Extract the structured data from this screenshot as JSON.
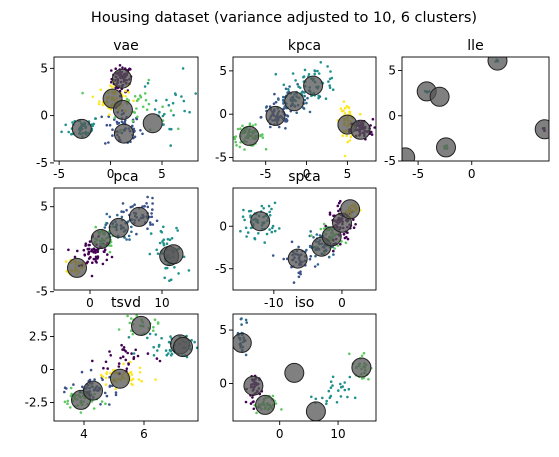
{
  "figure_title": "Housing dataset (variance adjusted to 10, 6 clusters)",
  "colors": {
    "cluster_palette": [
      "#440154",
      "#3b528b",
      "#21918c",
      "#5ec962",
      "#fde725",
      "#31688e"
    ],
    "centroid_fill": "#555555",
    "centroid_edge": "#222222",
    "axes": "#000000",
    "background": "#ffffff"
  },
  "chart_data": [
    {
      "type": "scatter",
      "title": "vae",
      "xlim": [
        -5.5,
        8.5
      ],
      "ylim": [
        -4.8,
        6.2
      ],
      "xticks": [
        -5,
        0,
        5
      ],
      "yticks": [
        -5,
        0,
        5
      ],
      "grid": false,
      "legend": "none",
      "centroids": [
        [
          -2.8,
          -1.4
        ],
        [
          0.2,
          1.8
        ],
        [
          1.1,
          3.9
        ],
        [
          1.2,
          0.6
        ],
        [
          1.3,
          -1.9
        ],
        [
          4.1,
          -0.8
        ]
      ],
      "clusters": [
        {
          "cluster": 0,
          "center": [
            1.1,
            3.9
          ],
          "spread": [
            0.5,
            0.7
          ],
          "n": 70
        },
        {
          "cluster": 1,
          "center": [
            1.2,
            -1.3
          ],
          "spread": [
            0.9,
            1.1
          ],
          "n": 55
        },
        {
          "cluster": 2,
          "center": [
            -2.8,
            -1.2
          ],
          "spread": [
            0.9,
            0.6
          ],
          "n": 45
        },
        {
          "cluster": 3,
          "center": [
            2.5,
            1.0
          ],
          "spread": [
            1.5,
            1.2
          ],
          "n": 30
        },
        {
          "cluster": 4,
          "center": [
            0.3,
            1.8
          ],
          "spread": [
            0.7,
            0.8
          ],
          "n": 60
        },
        {
          "cluster": 2,
          "center": [
            5.8,
            0.8
          ],
          "spread": [
            1.4,
            1.8
          ],
          "n": 25
        }
      ]
    },
    {
      "type": "scatter",
      "title": "kpca",
      "xlim": [
        -9.0,
        8.5
      ],
      "ylim": [
        -5.4,
        6.6
      ],
      "xticks": [
        -5,
        0,
        5
      ],
      "yticks": [
        -5,
        0,
        5
      ],
      "grid": false,
      "legend": "none",
      "centroids": [
        [
          -7.0,
          -2.5
        ],
        [
          -3.8,
          -0.2
        ],
        [
          -1.5,
          1.5
        ],
        [
          0.8,
          3.3
        ],
        [
          5.0,
          -1.2
        ],
        [
          6.6,
          -1.8
        ]
      ],
      "clusters": [
        {
          "cluster": 3,
          "center": [
            -7.2,
            -2.5
          ],
          "spread": [
            1.0,
            0.6
          ],
          "n": 60
        },
        {
          "cluster": 1,
          "center": [
            -3.5,
            -0.3
          ],
          "spread": [
            1.0,
            0.8
          ],
          "n": 60
        },
        {
          "cluster": 5,
          "center": [
            -1.5,
            1.5
          ],
          "spread": [
            1.3,
            0.8
          ],
          "n": 55
        },
        {
          "cluster": 2,
          "center": [
            0.8,
            3.6
          ],
          "spread": [
            1.6,
            1.0
          ],
          "n": 55
        },
        {
          "cluster": 4,
          "center": [
            5.0,
            -0.8
          ],
          "spread": [
            0.5,
            1.0
          ],
          "n": 50
        },
        {
          "cluster": 0,
          "center": [
            6.7,
            -1.8
          ],
          "spread": [
            0.7,
            0.6
          ],
          "n": 55
        }
      ]
    },
    {
      "type": "scatter",
      "title": "lle",
      "xlim": [
        -6.5,
        7.2
      ],
      "ylim": [
        -5.0,
        6.5
      ],
      "xticks": [
        -5,
        0
      ],
      "yticks": [
        -5,
        0,
        5
      ],
      "grid": false,
      "legend": "none",
      "centroids": [
        [
          -6.2,
          -4.6
        ],
        [
          -4.2,
          2.7
        ],
        [
          -3.0,
          2.1
        ],
        [
          -2.4,
          -3.5
        ],
        [
          2.4,
          6.1
        ],
        [
          6.8,
          -1.5
        ]
      ],
      "clusters": [
        {
          "cluster": 2,
          "center": [
            -4.2,
            2.7
          ],
          "spread": [
            0.15,
            0.15
          ],
          "n": 6
        },
        {
          "cluster": 3,
          "center": [
            -2.4,
            -3.5
          ],
          "spread": [
            0.15,
            0.15
          ],
          "n": 6
        },
        {
          "cluster": 2,
          "center": [
            2.4,
            6.1
          ],
          "spread": [
            0.1,
            0.1
          ],
          "n": 4
        },
        {
          "cluster": 0,
          "center": [
            6.8,
            -1.5
          ],
          "spread": [
            0.1,
            0.1
          ],
          "n": 4
        }
      ]
    },
    {
      "type": "scatter",
      "title": "pca",
      "xlim": [
        -5.0,
        15.0
      ],
      "ylim": [
        -4.8,
        7.2
      ],
      "xticks": [
        0,
        10
      ],
      "yticks": [
        -5,
        0,
        5
      ],
      "grid": false,
      "legend": "none",
      "centroids": [
        [
          -1.8,
          -2.2
        ],
        [
          1.5,
          1.2
        ],
        [
          4.0,
          2.5
        ],
        [
          6.8,
          3.8
        ],
        [
          11.0,
          -0.8
        ],
        [
          11.6,
          -0.6
        ]
      ],
      "clusters": [
        {
          "cluster": 0,
          "center": [
            0.5,
            -0.3
          ],
          "spread": [
            1.2,
            1.0
          ],
          "n": 65
        },
        {
          "cluster": 4,
          "center": [
            -2.0,
            -2.0
          ],
          "spread": [
            0.5,
            0.5
          ],
          "n": 30
        },
        {
          "cluster": 3,
          "center": [
            1.6,
            1.2
          ],
          "spread": [
            1.0,
            0.8
          ],
          "n": 40
        },
        {
          "cluster": 5,
          "center": [
            4.0,
            2.6
          ],
          "spread": [
            1.0,
            0.8
          ],
          "n": 40
        },
        {
          "cluster": 1,
          "center": [
            7.0,
            4.0
          ],
          "spread": [
            1.2,
            1.0
          ],
          "n": 45
        },
        {
          "cluster": 2,
          "center": [
            11.0,
            -0.8
          ],
          "spread": [
            1.2,
            1.8
          ],
          "n": 45
        }
      ]
    },
    {
      "type": "scatter",
      "title": "spca",
      "xlim": [
        -16.0,
        5.0
      ],
      "ylim": [
        -7.5,
        4.5
      ],
      "xticks": [
        -10,
        0
      ],
      "yticks": [
        -5,
        0
      ],
      "grid": false,
      "legend": "none",
      "centroids": [
        [
          -12.0,
          0.6
        ],
        [
          -6.5,
          -3.8
        ],
        [
          -3.0,
          -2.4
        ],
        [
          -1.5,
          -1.2
        ],
        [
          0.0,
          0.4
        ],
        [
          1.2,
          2.0
        ]
      ],
      "clusters": [
        {
          "cluster": 2,
          "center": [
            -12.0,
            0.7
          ],
          "spread": [
            1.3,
            1.0
          ],
          "n": 55
        },
        {
          "cluster": 1,
          "center": [
            -6.5,
            -3.8
          ],
          "spread": [
            1.2,
            0.9
          ],
          "n": 45
        },
        {
          "cluster": 5,
          "center": [
            -3.0,
            -2.4
          ],
          "spread": [
            1.0,
            0.8
          ],
          "n": 45
        },
        {
          "cluster": 3,
          "center": [
            -1.5,
            -1.2
          ],
          "spread": [
            0.8,
            0.7
          ],
          "n": 40
        },
        {
          "cluster": 0,
          "center": [
            0.0,
            0.3
          ],
          "spread": [
            1.0,
            1.1
          ],
          "n": 70
        },
        {
          "cluster": 4,
          "center": [
            1.3,
            2.0
          ],
          "spread": [
            0.5,
            0.4
          ],
          "n": 30
        }
      ]
    },
    {
      "type": "scatter",
      "title": "tsvd",
      "xlim": [
        3.0,
        7.8
      ],
      "ylim": [
        -3.9,
        4.2
      ],
      "xticks": [
        4,
        6
      ],
      "yticks": [
        -2.5,
        0.0,
        2.5
      ],
      "grid": false,
      "legend": "none",
      "centroids": [
        [
          3.9,
          -2.3
        ],
        [
          4.3,
          -1.6
        ],
        [
          5.2,
          -0.7
        ],
        [
          5.9,
          3.3
        ],
        [
          7.2,
          1.9
        ],
        [
          7.3,
          1.7
        ]
      ],
      "clusters": [
        {
          "cluster": 3,
          "center": [
            3.9,
            -2.3
          ],
          "spread": [
            0.3,
            0.4
          ],
          "n": 45
        },
        {
          "cluster": 1,
          "center": [
            4.4,
            -1.4
          ],
          "spread": [
            0.4,
            0.5
          ],
          "n": 50
        },
        {
          "cluster": 4,
          "center": [
            5.2,
            -0.6
          ],
          "spread": [
            0.4,
            0.4
          ],
          "n": 50
        },
        {
          "cluster": 0,
          "center": [
            5.4,
            0.8
          ],
          "spread": [
            0.5,
            0.8
          ],
          "n": 30
        },
        {
          "cluster": 3,
          "center": [
            5.9,
            3.3
          ],
          "spread": [
            0.3,
            0.3
          ],
          "n": 25
        },
        {
          "cluster": 2,
          "center": [
            7.0,
            1.8
          ],
          "spread": [
            0.5,
            0.5
          ],
          "n": 45
        }
      ]
    },
    {
      "type": "scatter",
      "title": "iso",
      "xlim": [
        -8.0,
        16.5
      ],
      "ylim": [
        -3.5,
        6.5
      ],
      "xticks": [
        0,
        10
      ],
      "yticks": [
        0,
        5
      ],
      "grid": false,
      "legend": "none",
      "centroids": [
        [
          -6.5,
          3.8
        ],
        [
          -4.5,
          -0.2
        ],
        [
          -2.5,
          -2.0
        ],
        [
          2.5,
          1.0
        ],
        [
          6.2,
          -2.6
        ],
        [
          14.0,
          1.5
        ]
      ],
      "clusters": [
        {
          "cluster": 5,
          "center": [
            -6.5,
            4.5
          ],
          "spread": [
            0.4,
            1.0
          ],
          "n": 30
        },
        {
          "cluster": 0,
          "center": [
            -4.5,
            -0.5
          ],
          "spread": [
            0.5,
            0.8
          ],
          "n": 40
        },
        {
          "cluster": 3,
          "center": [
            -2.5,
            -2.0
          ],
          "spread": [
            1.0,
            0.4
          ],
          "n": 35
        },
        {
          "cluster": 2,
          "center": [
            9.0,
            -1.0
          ],
          "spread": [
            1.5,
            0.8
          ],
          "n": 25
        },
        {
          "cluster": 3,
          "center": [
            14.0,
            1.5
          ],
          "spread": [
            0.8,
            0.8
          ],
          "n": 25
        }
      ]
    }
  ]
}
